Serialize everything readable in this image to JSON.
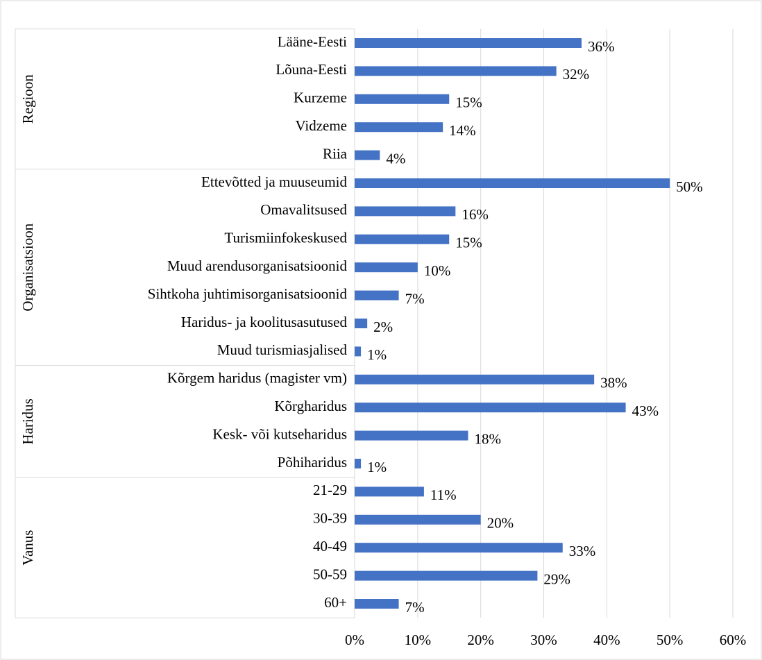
{
  "chart_data": {
    "type": "bar",
    "orientation": "horizontal",
    "color": "#4472c4",
    "xlim": [
      0,
      60
    ],
    "xticks": [
      {
        "value": 0,
        "label": "0%"
      },
      {
        "value": 10,
        "label": "10%"
      },
      {
        "value": 20,
        "label": "20%"
      },
      {
        "value": 30,
        "label": "30%"
      },
      {
        "value": 40,
        "label": "40%"
      },
      {
        "value": 50,
        "label": "50%"
      },
      {
        "value": 60,
        "label": "60%"
      }
    ],
    "grid": true,
    "groups": [
      {
        "name": "Regioon",
        "categories": [
          "Lääne-Eesti",
          "Lõuna-Eesti",
          "Kurzeme",
          "Vidzeme",
          "Riia"
        ],
        "values": [
          36,
          32,
          15,
          14,
          4
        ],
        "value_labels": [
          "36%",
          "32%",
          "15%",
          "14%",
          "4%"
        ]
      },
      {
        "name": "Organisatsioon",
        "categories": [
          "Ettevõtted ja muuseumid",
          "Omavalitsused",
          "Turismiinfokeskused",
          "Muud arendusorganisatsioonid",
          "Sihtkoha juhtimisorganisatsioonid",
          "Haridus- ja koolitusasutused",
          "Muud turismiasjalised"
        ],
        "values": [
          50,
          16,
          15,
          10,
          7,
          2,
          1
        ],
        "value_labels": [
          "50%",
          "16%",
          "15%",
          "10%",
          "7%",
          "2%",
          "1%"
        ]
      },
      {
        "name": "Haridus",
        "categories": [
          "Kõrgem haridus (magister vm)",
          "Kõrgharidus",
          "Kesk- või kutseharidus",
          "Põhiharidus"
        ],
        "values": [
          38,
          43,
          18,
          1
        ],
        "value_labels": [
          "38%",
          "43%",
          "18%",
          "1%"
        ]
      },
      {
        "name": "Vanus",
        "categories": [
          "21-29",
          "30-39",
          "40-49",
          "50-59",
          "60+"
        ],
        "values": [
          11,
          20,
          33,
          29,
          7
        ],
        "value_labels": [
          "11%",
          "20%",
          "33%",
          "29%",
          "7%"
        ]
      }
    ]
  }
}
